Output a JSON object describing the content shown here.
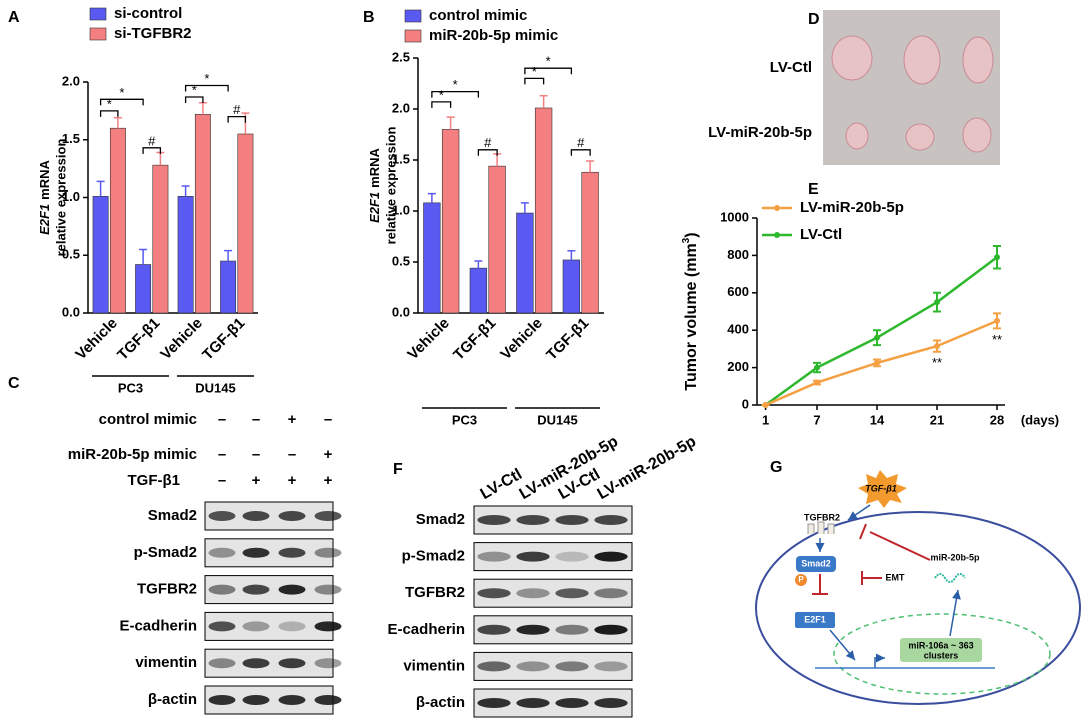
{
  "panel_labels": [
    "A",
    "B",
    "C",
    "D",
    "E",
    "F",
    "G"
  ],
  "chart_data": [
    {
      "type": "bar",
      "ylabel": {
        "gene": "E2F1",
        "rest": "mRNA",
        "line2": "relative expression"
      },
      "categories": [
        "Vehicle",
        "TGF-β1",
        "Vehicle",
        "TGF-β1"
      ],
      "groups": [
        "PC3",
        "DU145"
      ],
      "series": [
        {
          "name": "si-control",
          "color": "#5a5af2",
          "values": [
            1.01,
            0.42,
            1.01,
            0.45
          ],
          "errors": [
            0.13,
            0.13,
            0.09,
            0.09
          ]
        },
        {
          "name": "si-TGFBR2",
          "color": "#f47f80",
          "values": [
            1.6,
            1.28,
            1.72,
            1.55
          ],
          "errors": [
            0.09,
            0.11,
            0.1,
            0.18
          ]
        }
      ],
      "ylim": [
        0,
        2
      ],
      "yticks": [
        {
          "value": 0,
          "label": "0.0"
        },
        0.5,
        {
          "value": 1,
          "label": "1.0"
        },
        1.5,
        {
          "value": 2,
          "label": "2.0"
        }
      ],
      "annotations": [
        "*",
        "*",
        "#",
        "*",
        "*",
        "#"
      ]
    },
    {
      "type": "bar",
      "ylabel": {
        "gene": "E2F1",
        "rest": "mRNA",
        "line2": "relative expression"
      },
      "categories": [
        "Vehicle",
        "TGF-β1",
        "Vehicle",
        "TGF-β1"
      ],
      "groups": [
        "PC3",
        "DU145"
      ],
      "series": [
        {
          "name": "control mimic",
          "color": "#5a5af2",
          "values": [
            1.08,
            0.44,
            0.98,
            0.52
          ],
          "errors": [
            0.09,
            0.07,
            0.1,
            0.09
          ]
        },
        {
          "name": "miR-20b-5p mimic",
          "color": "#f47f80",
          "values": [
            1.8,
            1.44,
            2.01,
            1.38
          ],
          "errors": [
            0.12,
            0.12,
            0.12,
            0.11
          ]
        }
      ],
      "ylim": [
        0,
        2.5
      ],
      "yticks": [
        {
          "value": 0,
          "label": "0.0"
        },
        0.5,
        {
          "value": 1,
          "label": "1.0"
        },
        1.5,
        {
          "value": 2,
          "label": "2.0"
        },
        2.5
      ],
      "annotations": [
        "*",
        "*",
        "#",
        "*",
        "*",
        "#"
      ]
    },
    {
      "type": "line",
      "ylabel": {
        "text": "Tumor volume (mm",
        "sup": "3",
        "end": ")"
      },
      "xlabel": "(days)",
      "x": [
        1,
        7,
        14,
        21,
        28
      ],
      "xlim": [
        0,
        28
      ],
      "xticks": [
        1,
        7,
        14,
        21,
        28
      ],
      "series": [
        {
          "name": "LV-miR-20b-5p",
          "color": "#f5a043",
          "values": [
            0,
            120,
            225,
            315,
            450
          ],
          "errors": [
            0,
            10,
            18,
            30,
            40
          ]
        },
        {
          "name": "LV-Ctl",
          "color": "#2eb82e",
          "values": [
            0,
            200,
            360,
            550,
            790
          ],
          "errors": [
            0,
            25,
            40,
            50,
            60
          ]
        }
      ],
      "ylim": [
        0,
        1000
      ],
      "yticks": [
        0,
        200,
        400,
        600,
        800,
        1000
      ],
      "annotations": [
        "**",
        "**"
      ]
    }
  ],
  "blot_c": {
    "conditions": [
      {
        "label": "control mimic",
        "signs": [
          "–",
          "–",
          "+",
          "–"
        ]
      },
      {
        "label": "miR-20b-5p mimic",
        "signs": [
          "–",
          "–",
          "–",
          "+"
        ]
      },
      {
        "label": "TGF-β1",
        "signs": [
          "–",
          "+",
          "+",
          "+"
        ]
      }
    ],
    "bands": [
      "Smad2",
      "p-Smad2",
      "TGFBR2",
      "E-cadherin",
      "vimentin",
      "β-actin"
    ]
  },
  "photo_d": {
    "labels": [
      "LV-Ctl",
      "LV-miR-20b-5p"
    ]
  },
  "blot_f": {
    "lanes": [
      "LV-Ctl",
      "LV-miR-20b-5p",
      "LV-Ctl",
      "LV-miR-20b-5p"
    ],
    "bands": [
      "Smad2",
      "p-Smad2",
      "TGFBR2",
      "E-cadherin",
      "vimentin",
      "β-actin"
    ]
  },
  "diagram_g": {
    "ligand": "TGF-β1",
    "receptor": "TGFBR2",
    "smad": "Smad2",
    "phospho": "P",
    "emt": "EMT",
    "mirna": "miR-20b-5p",
    "tf": "E2F1",
    "cluster": [
      "miR-106a ~ 363",
      "clusters"
    ]
  }
}
